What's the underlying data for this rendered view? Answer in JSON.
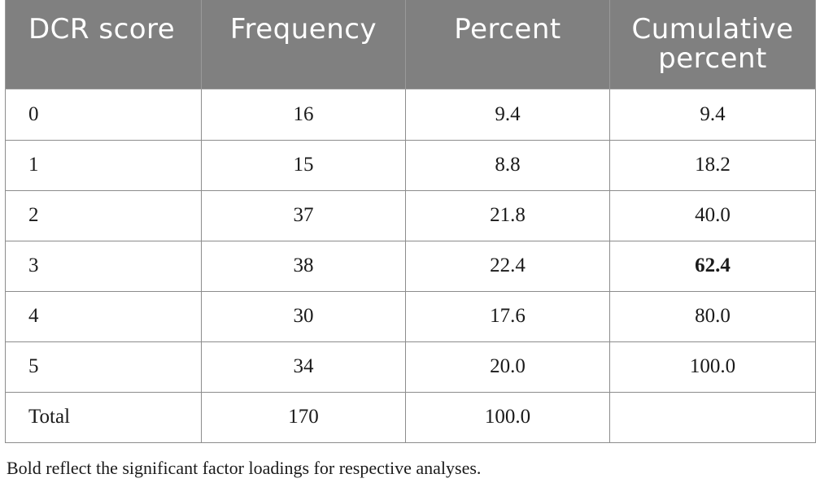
{
  "table": {
    "headers": [
      "DCR score",
      "Frequency",
      "Percent",
      "Cumulative percent"
    ],
    "header_lines": {
      "cumulative_line1": "Cumulative",
      "cumulative_line2": "percent"
    },
    "rows": [
      {
        "score": "0",
        "frequency": "16",
        "percent": "9.4",
        "cumulative": "9.4",
        "cumulative_bold": false
      },
      {
        "score": "1",
        "frequency": "15",
        "percent": "8.8",
        "cumulative": "18.2",
        "cumulative_bold": false
      },
      {
        "score": "2",
        "frequency": "37",
        "percent": "21.8",
        "cumulative": "40.0",
        "cumulative_bold": false
      },
      {
        "score": "3",
        "frequency": "38",
        "percent": "22.4",
        "cumulative": "62.4",
        "cumulative_bold": true
      },
      {
        "score": "4",
        "frequency": "30",
        "percent": "17.6",
        "cumulative": "80.0",
        "cumulative_bold": false
      },
      {
        "score": "5",
        "frequency": "34",
        "percent": "20.0",
        "cumulative": "100.0",
        "cumulative_bold": false
      },
      {
        "score": "Total",
        "frequency": "170",
        "percent": "100.0",
        "cumulative": "",
        "cumulative_bold": false
      }
    ],
    "colors": {
      "header_bg": "#808080",
      "header_text": "#ffffff",
      "border": "#8c8c8c"
    }
  },
  "footnote": "Bold reflect the significant factor loadings for respective analyses."
}
